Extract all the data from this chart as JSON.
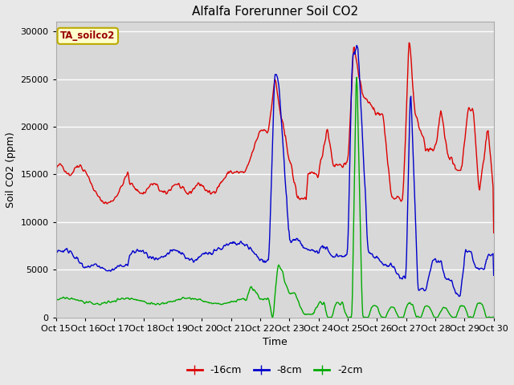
{
  "title": "Alfalfa Forerunner Soil CO2",
  "ylabel": "Soil CO2 (ppm)",
  "xlabel": "Time",
  "annotation": "TA_soilco2",
  "legend_labels": [
    "-16cm",
    "-8cm",
    "-2cm"
  ],
  "legend_colors": [
    "#dd0000",
    "#0000cc",
    "#00aa00"
  ],
  "ylim": [
    0,
    31000
  ],
  "yticks": [
    0,
    5000,
    10000,
    15000,
    20000,
    25000,
    30000
  ],
  "xtick_labels": [
    "Oct 15",
    "Oct 16",
    "Oct 17",
    "Oct 18",
    "Oct 19",
    "Oct 20",
    "Oct 21",
    "Oct 22",
    "Oct 23",
    "Oct 24",
    "Oct 25",
    "Oct 26",
    "Oct 27",
    "Oct 28",
    "Oct 29",
    "Oct 30"
  ],
  "bg_color": "#e8e8e8",
  "plot_bg_color": "#d8d8d8",
  "grid_color": "#ffffff",
  "title_fontsize": 11,
  "label_fontsize": 9,
  "tick_fontsize": 8,
  "line_width": 1.0
}
